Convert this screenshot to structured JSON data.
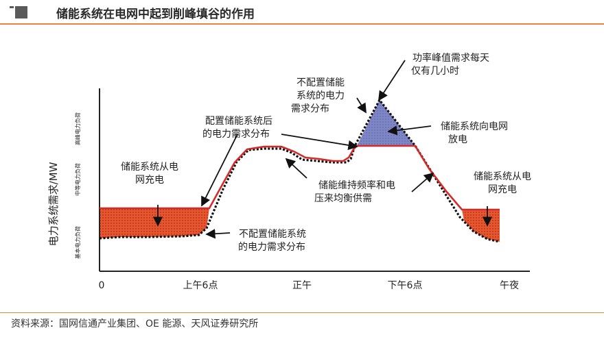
{
  "header": {
    "title": "储能系统在电网中起到削峰填谷的作用"
  },
  "footer": {
    "source": "资料来源：国网信通产业集团、OE 能源、天风证券研究所"
  },
  "diagram": {
    "y_axis_label": "电力系统需求/MW",
    "y_bands": [
      {
        "label": "高峰电力负荷"
      },
      {
        "label": "中等电力负荷"
      },
      {
        "label": "基本电力负荷"
      }
    ],
    "x_ticks": [
      "0",
      "上午6点",
      "正午",
      "下午6点",
      "午夜"
    ],
    "annotations": {
      "charge_left": [
        "储能系统从电",
        "网充电"
      ],
      "charge_right": [
        "储能系统从电",
        "网充电"
      ],
      "discharge": [
        "储能系统向电网",
        "放电"
      ],
      "with_storage": [
        "配置储能系统后",
        "的电力需求分布"
      ],
      "without_storage_bottom": [
        "不配置储能系统",
        "的电力需求分布"
      ],
      "without_storage_top": [
        "不配置储能",
        "系统的电力",
        "需求分布"
      ],
      "peak_duration": [
        "功率峰值需求每天",
        "仅有几小时"
      ],
      "balance": [
        "储能维持频率和电",
        "压来均衡供需"
      ]
    },
    "colors": {
      "charge_fill": "#e8552f",
      "discharge_fill": "#7e86c6",
      "storage_curve": "#d42a2a",
      "demand_curve": "#111111",
      "accent_rule": "#e8833a"
    }
  }
}
